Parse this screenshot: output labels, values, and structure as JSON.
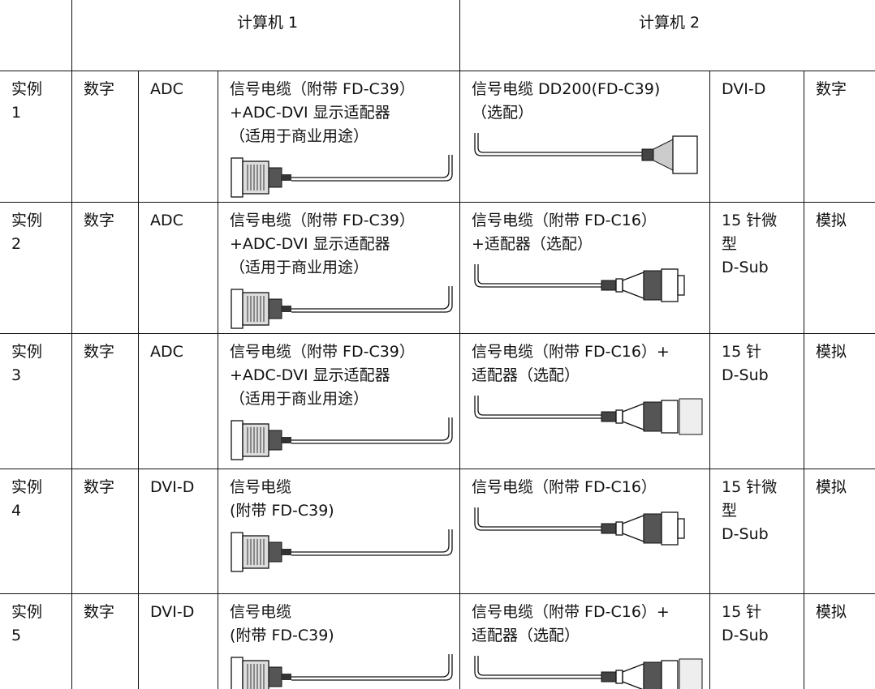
{
  "table": {
    "header": [
      "计算机 1",
      "计算机 2"
    ],
    "rows": [
      [
        [
          "实例",
          "1"
        ],
        [
          "数字"
        ],
        [
          "ADC"
        ],
        [
          "信号电缆（附带 FD-C39）",
          "+ADC-DVI 显示适配器",
          "（适用于商业用途）"
        ],
        [
          "信号电缆 DD200(FD-C39)",
          "（选配）"
        ],
        [
          "DVI-D"
        ],
        [
          "数字"
        ]
      ],
      [
        [
          "实例",
          "2"
        ],
        [
          "数字"
        ],
        [
          "ADC"
        ],
        [
          "信号电缆（附带 FD-C39）",
          "+ADC-DVI 显示适配器",
          "（适用于商业用途）"
        ],
        [
          "信号电缆（附带 FD-C16）",
          "+适配器（选配）"
        ],
        [
          "15 针微",
          "型",
          "D-Sub"
        ],
        [
          "模拟"
        ]
      ],
      [
        [
          "实例",
          "3"
        ],
        [
          "数字"
        ],
        [
          "ADC"
        ],
        [
          "信号电缆（附带 FD-C39）",
          "+ADC-DVI 显示适配器",
          "（适用于商业用途）"
        ],
        [
          "信号电缆（附带 FD-C16）+",
          "适配器（选配）"
        ],
        [
          "15 针",
          "D-Sub"
        ],
        [
          "模拟"
        ]
      ],
      [
        [
          "实例",
          "4"
        ],
        [
          "数字"
        ],
        [
          "DVI-D"
        ],
        [
          "信号电缆",
          "(附带 FD-C39)"
        ],
        [
          "信号电缆（附带 FD-C16）"
        ],
        [
          "15 针微",
          "型",
          "D-Sub"
        ],
        [
          "模拟"
        ]
      ],
      [
        [
          "实例",
          "5"
        ],
        [
          "数字"
        ],
        [
          "DVI-D"
        ],
        [
          "信号电缆",
          "(附带 FD-C39)"
        ],
        [
          "信号电缆（附带 FD-C16）+",
          "适配器（选配）"
        ],
        [
          "15 针",
          "D-Sub"
        ],
        [
          "模拟"
        ]
      ]
    ]
  }
}
